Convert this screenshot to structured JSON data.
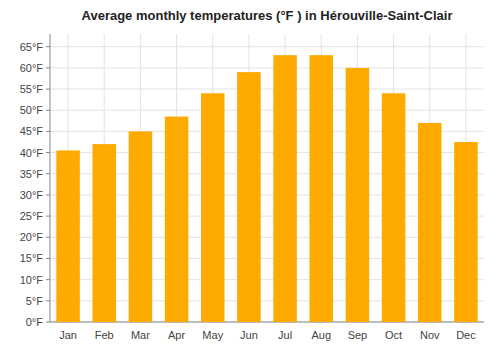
{
  "chart_data": {
    "type": "bar",
    "title": "Average monthly temperatures (°F ) in Hérouville-Saint-Clair",
    "categories": [
      "Jan",
      "Feb",
      "Mar",
      "Apr",
      "May",
      "Jun",
      "Jul",
      "Aug",
      "Sep",
      "Oct",
      "Nov",
      "Dec"
    ],
    "values": [
      40.5,
      42.0,
      45.0,
      48.5,
      54.0,
      59.0,
      63.0,
      63.0,
      60.0,
      54.0,
      47.0,
      42.5
    ],
    "color": "#FFAA00",
    "ylim": [
      0,
      68
    ],
    "yticks": [
      {
        "value": 0,
        "label": "0°F"
      },
      {
        "value": 5,
        "label": "5°F"
      },
      {
        "value": 10,
        "label": "10°F"
      },
      {
        "value": 15,
        "label": "15°F"
      },
      {
        "value": 20,
        "label": "20°F"
      },
      {
        "value": 25,
        "label": "25°F"
      },
      {
        "value": 30,
        "label": "30°F"
      },
      {
        "value": 35,
        "label": "35°F"
      },
      {
        "value": 40,
        "label": "40°F"
      },
      {
        "value": 45,
        "label": "45°F"
      },
      {
        "value": 50,
        "label": "50°F"
      },
      {
        "value": 55,
        "label": "55°F"
      },
      {
        "value": 60,
        "label": "60°F"
      },
      {
        "value": 65,
        "label": "65°F"
      }
    ],
    "grid": true
  }
}
